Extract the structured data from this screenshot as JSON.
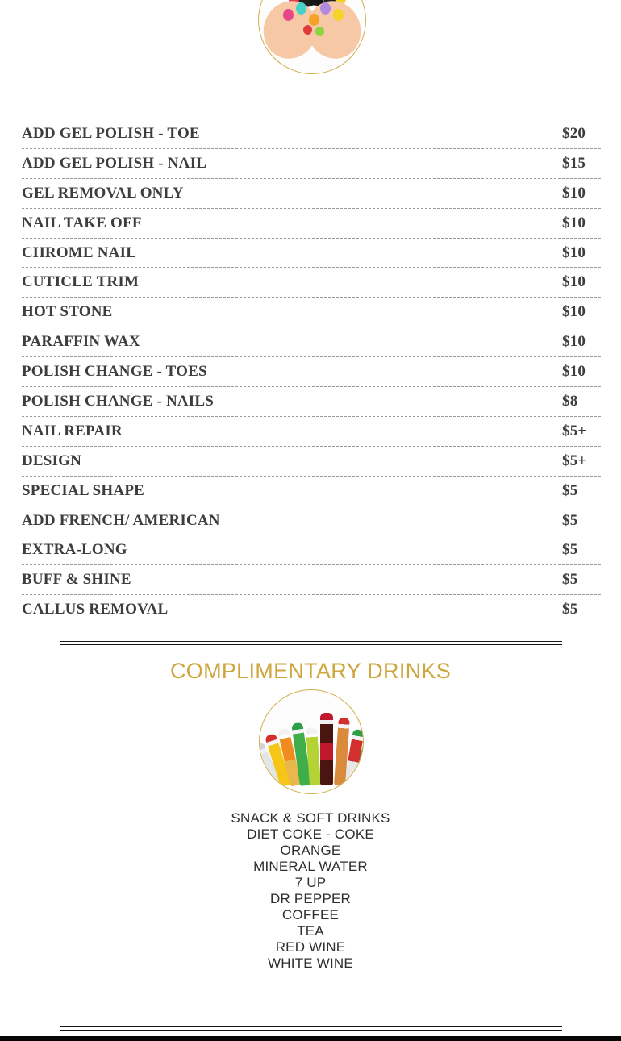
{
  "page": {
    "background_color": "#ffffff",
    "accent_gold": "#cda63e",
    "text_color": "#3d3d3d"
  },
  "images": {
    "top_photo": "nail-polish-hands-photo",
    "drinks_photo": "soda-bottles-photo"
  },
  "services": {
    "items": [
      {
        "label": "ADD GEL POLISH - TOE",
        "price": "$20"
      },
      {
        "label": "ADD GEL POLISH - NAIL",
        "price": "$15"
      },
      {
        "label": "GEL REMOVAL ONLY",
        "price": "$10"
      },
      {
        "label": "NAIL TAKE OFF",
        "price": "$10"
      },
      {
        "label": "CHROME NAIL",
        "price": "$10"
      },
      {
        "label": "CUTICLE TRIM",
        "price": "$10"
      },
      {
        "label": "HOT STONE",
        "price": "$10"
      },
      {
        "label": "PARAFFIN WAX",
        "price": "$10"
      },
      {
        "label": "POLISH CHANGE - TOES",
        "price": "$10"
      },
      {
        "label": "POLISH CHANGE - NAILS",
        "price": "$8"
      },
      {
        "label": "NAIL REPAIR",
        "price": "$5+"
      },
      {
        "label": "DESIGN",
        "price": "$5+"
      },
      {
        "label": "SPECIAL SHAPE",
        "price": "$5"
      },
      {
        "label": "ADD FRENCH/ AMERICAN",
        "price": "$5"
      },
      {
        "label": "EXTRA-LONG",
        "price": "$5"
      },
      {
        "label": "BUFF & SHINE",
        "price": "$5"
      },
      {
        "label": "CALLUS REMOVAL",
        "price": "$5"
      }
    ]
  },
  "drinks": {
    "heading": "COMPLIMENTARY DRINKS",
    "items": [
      "SNACK & SOFT DRINKS",
      "DIET COKE - COKE",
      "ORANGE",
      "MINERAL WATER",
      "7 UP",
      "DR PEPPER",
      "COFFEE",
      "TEA",
      "RED WINE",
      "WHITE WINE"
    ]
  }
}
